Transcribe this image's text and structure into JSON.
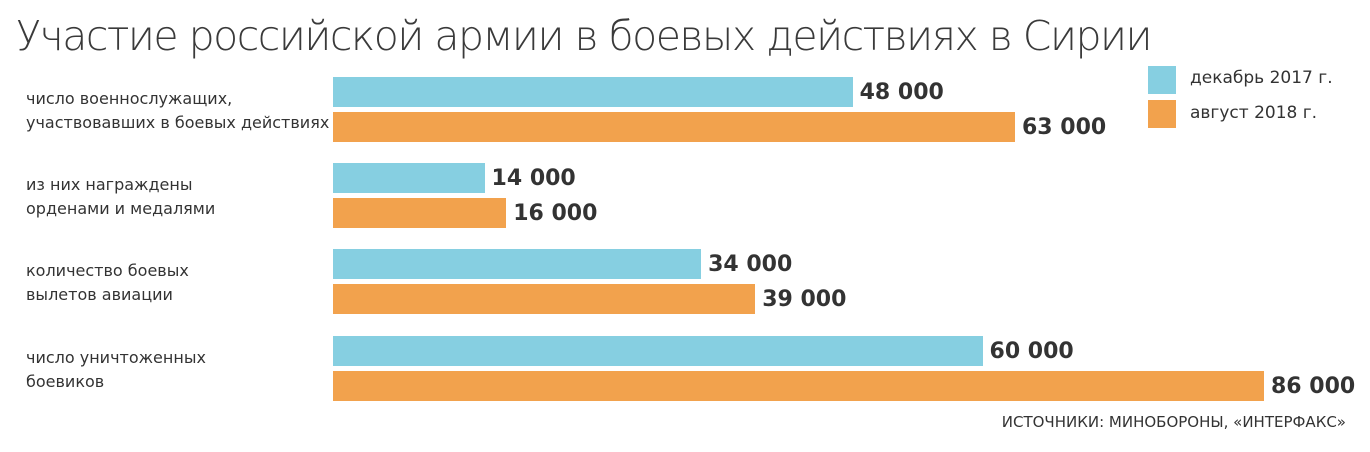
{
  "chart_data": {
    "type": "bar",
    "orientation": "horizontal",
    "title": "Участие российской армии в боевых действиях в Сирии",
    "categories": [
      "число военнослужащих,\nучаствовавших в боевых действиях",
      "из них награждены\nорденами и медалями",
      "количество боевых\nвылетов авиации",
      "число уничтоженных\nбоевиков"
    ],
    "series": [
      {
        "name": "декабрь 2017 г.",
        "color": "#86cfe1",
        "values": [
          48000,
          14000,
          34000,
          60000
        ],
        "labels": [
          "48 000",
          "14 000",
          "34 000",
          "60 000"
        ]
      },
      {
        "name": "август 2018 г.",
        "color": "#f2a24d",
        "values": [
          63000,
          16000,
          39000,
          86000
        ],
        "labels": [
          "63 000",
          "16 000",
          "39 000",
          "86 000"
        ]
      }
    ],
    "xlim": [
      0,
      86000
    ],
    "grid": false,
    "legend": "top-right",
    "source": "ИСТОЧНИКИ: МИНОБОРОНЫ, «ИНТЕРФАКС»"
  }
}
